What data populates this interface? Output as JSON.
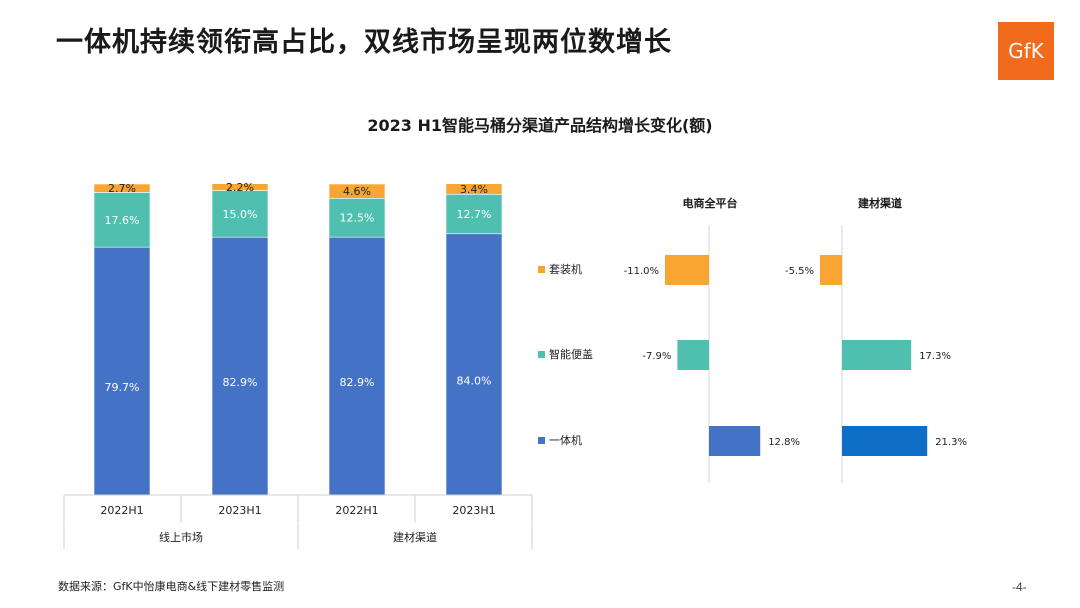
{
  "slide": {
    "title": "一体机持续领衔高占比，双线市场呈现两位数增长",
    "logo_text": "GfK",
    "footnote": "数据来源：GfK中怡康电商&线下建材零售监测",
    "page_number": "-4-"
  },
  "chart_data": [
    {
      "type": "bar",
      "stacked": true,
      "title": "2023 H1智能马桶分渠道产品结构增长变化(额)",
      "categories": [
        "2022H1",
        "2023H1",
        "2022H1",
        "2023H1"
      ],
      "groups": [
        {
          "label": "线上市场",
          "span": 2
        },
        {
          "label": "建材渠道",
          "span": 2
        }
      ],
      "series": [
        {
          "name": "一体机",
          "color": "#4472c4",
          "values": [
            79.7,
            82.9,
            82.9,
            84.0
          ]
        },
        {
          "name": "智能便盖",
          "color": "#4fbfb0",
          "values": [
            17.6,
            15.0,
            12.5,
            12.7
          ]
        },
        {
          "name": "套装机",
          "color": "#f9a533",
          "values": [
            2.7,
            2.2,
            4.6,
            3.4
          ]
        }
      ],
      "labels": [
        [
          "79.7%",
          "82.9%",
          "82.9%",
          "84.0%"
        ],
        [
          "17.6%",
          "15.0%",
          "12.5%",
          "12.7%"
        ],
        [
          "2.7%",
          "2.2%",
          "4.6%",
          "3.4%"
        ]
      ],
      "ylim": [
        0,
        100
      ]
    },
    {
      "type": "bar",
      "orientation": "horizontal",
      "panels": [
        "电商全平台",
        "建材渠道"
      ],
      "categories": [
        "套装机",
        "智能便盖",
        "一体机"
      ],
      "category_colors": [
        "#f9a533",
        "#4fbfb0",
        "#4472c4"
      ],
      "values": [
        [
          -11.0,
          -7.9,
          12.8
        ],
        [
          -5.5,
          17.3,
          21.3
        ]
      ],
      "labels": [
        [
          "-11.0%",
          "-7.9%",
          "12.8%"
        ],
        [
          "-5.5%",
          "17.3%",
          "21.3%"
        ]
      ],
      "bar_colors": [
        [
          "#f9a533",
          "#4fbfb0",
          "#4472c4"
        ],
        [
          "#f9a533",
          "#4fbfb0",
          "#0f6fc6"
        ]
      ]
    }
  ]
}
